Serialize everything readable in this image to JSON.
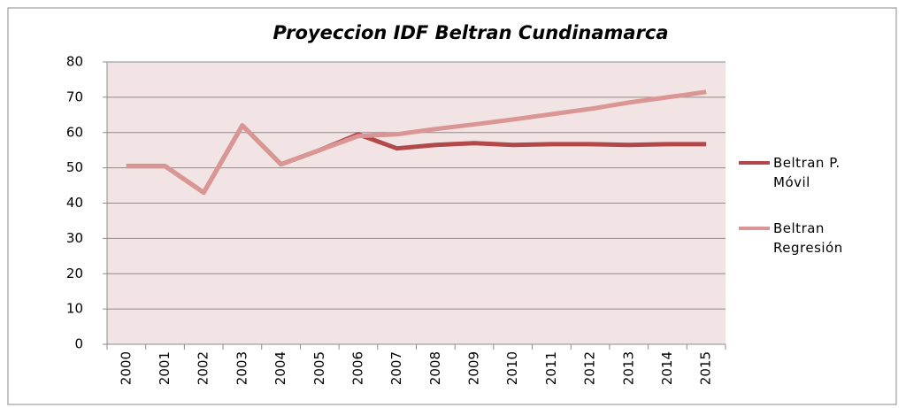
{
  "chart_data": {
    "type": "line",
    "title": "Proyeccion IDF Beltran Cundinamarca",
    "categories": [
      "2000",
      "2001",
      "2002",
      "2003",
      "2004",
      "2005",
      "2006",
      "2007",
      "2008",
      "2009",
      "2010",
      "2011",
      "2012",
      "2013",
      "2014",
      "2015"
    ],
    "series": [
      {
        "name": "Beltran P. Móvil",
        "color": "#b3484a",
        "values": [
          50.5,
          50.5,
          43,
          62,
          51,
          55,
          59.5,
          55.5,
          56.5,
          57,
          56.5,
          56.7,
          56.7,
          56.5,
          56.7,
          56.7
        ]
      },
      {
        "name": "Beltran Regresión",
        "color": "#d99694",
        "values": [
          50.5,
          50.5,
          43,
          62,
          51,
          55,
          59,
          59.5,
          61,
          62.3,
          63.7,
          65.2,
          66.7,
          68.5,
          70,
          71.5
        ]
      }
    ],
    "ylim": [
      0,
      80
    ],
    "yticks": [
      0,
      10,
      20,
      30,
      40,
      50,
      60,
      70,
      80
    ],
    "grid": true,
    "legend": "right"
  }
}
